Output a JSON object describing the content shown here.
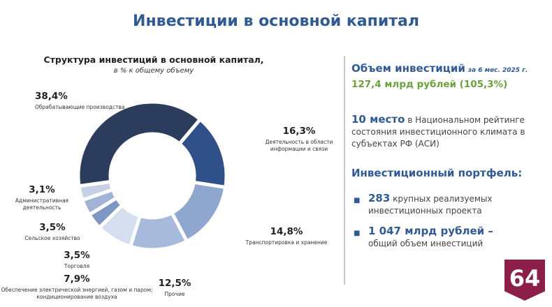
{
  "header": {
    "title": "Инвестиции в основной капитал"
  },
  "chart_data": {
    "type": "pie",
    "donut": true,
    "title": "Структура инвестиций в основной капитал,",
    "subtitle": "в % к общему объему",
    "categories": [
      "Обрабатывающие производства",
      "Деятельность в области информации и связи",
      "Транспортировка и хранение",
      "Прочие",
      "Обеспечение электрической энергией, газом и паром; кондиционирование воздуха",
      "Торговля",
      "Сельское хозяйство",
      "Административная деятельность"
    ],
    "values": [
      38.4,
      16.3,
      14.8,
      12.5,
      7.9,
      3.5,
      3.5,
      3.1
    ],
    "value_labels": [
      "38,4%",
      "16,3%",
      "14,8%",
      "12,5%",
      "7,9%",
      "3,5%",
      "3,5%",
      "3,1%"
    ],
    "colors": [
      "#2b3c5c",
      "#2f5088",
      "#8fa7cf",
      "#a8badb",
      "#d5deee",
      "#7f96c2",
      "#a3b3d6",
      "#c6d1e6"
    ]
  },
  "panel": {
    "volume_heading": "Объем инвестиций",
    "volume_period": "за 6 мес. 2025 г.",
    "volume_value": "127,4 млрд рублей (105,3%)",
    "rating_place": "10 место",
    "rating_text": "в Национальном рейтинге состояния инвестиционного климата в субъектах РФ (АСИ)",
    "portfolio_heading": "Инвестиционный портфель:",
    "portfolio_items": [
      {
        "number": "283",
        "text": "крупных реализуемых инвестиционных проекта"
      },
      {
        "number": "1 047 млрд рублей –",
        "text": "общий объем инвестиций"
      }
    ]
  },
  "badge": "64"
}
